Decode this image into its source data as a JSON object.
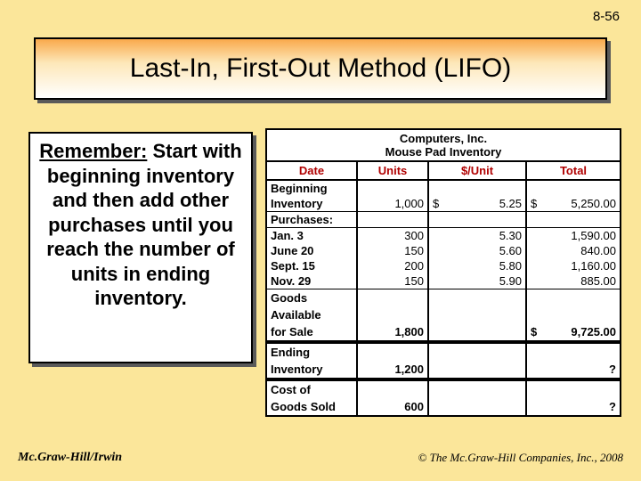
{
  "page_number": "8-56",
  "title": "Last-In, First-Out Method (LIFO)",
  "remember": {
    "label": "Remember:",
    "text": "Start with beginning inventory and then add other purchases until you reach the number of units in ending inventory."
  },
  "table": {
    "title_line1": "Computers, Inc.",
    "title_line2": "Mouse Pad Inventory",
    "headers": {
      "date": "Date",
      "units": "Units",
      "price": "$/Unit",
      "total": "Total"
    },
    "beginning_label": "Beginning Inventory",
    "beginning": {
      "units": "1,000",
      "price_prefix": "$",
      "price": "5.25",
      "total_prefix": "$",
      "total": "5,250.00"
    },
    "purchases_label": "Purchases:",
    "purchases": [
      {
        "date": "Jan. 3",
        "units": "300",
        "price": "5.30",
        "total": "1,590.00"
      },
      {
        "date": "June 20",
        "units": "150",
        "price": "5.60",
        "total": "840.00"
      },
      {
        "date": "Sept. 15",
        "units": "200",
        "price": "5.80",
        "total": "1,160.00"
      },
      {
        "date": "Nov. 29",
        "units": "150",
        "price": "5.90",
        "total": "885.00"
      }
    ],
    "gfs": {
      "label_line1": "Goods",
      "label_line2": "Available",
      "label_line3": "for Sale",
      "units": "1,800",
      "total_prefix": "$",
      "total": "9,725.00"
    },
    "ending": {
      "label_line1": "Ending",
      "label_line2": "Inventory",
      "units": "1,200",
      "total": "?"
    },
    "cogs": {
      "label_line1": "Cost of",
      "label_line2": "Goods Sold",
      "units": "600",
      "total": "?"
    }
  },
  "footer": {
    "left": "Mc.Graw-Hill/Irwin",
    "right": "© The Mc.Graw-Hill Companies, Inc., 2008"
  },
  "colors": {
    "slide_bg": "#fbe69a",
    "header_red": "#b00000",
    "title_grad_top": "#f9a94b",
    "title_grad_bot": "#ffffff"
  }
}
